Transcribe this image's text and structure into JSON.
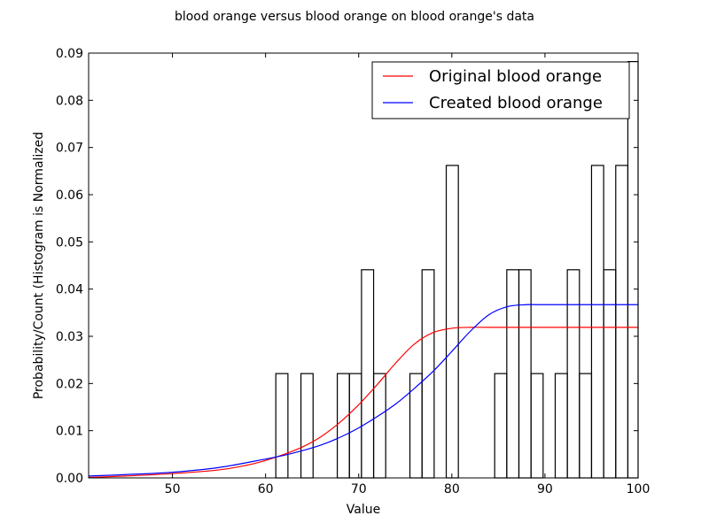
{
  "chart_data": {
    "type": "histogram+line",
    "title": "blood orange versus blood orange on blood orange's data",
    "xlabel": "Value",
    "ylabel": "Probability/Count (Histogram is Normalized",
    "xlim": [
      41,
      100
    ],
    "ylim": [
      0,
      0.09
    ],
    "xticks": [
      50,
      60,
      70,
      80,
      90,
      100
    ],
    "yticks": [
      0.0,
      0.01,
      0.02,
      0.03,
      0.04,
      0.05,
      0.06,
      0.07,
      0.08,
      0.09
    ],
    "ytick_labels": [
      "0.00",
      "0.01",
      "0.02",
      "0.03",
      "0.04",
      "0.05",
      "0.06",
      "0.07",
      "0.08",
      "0.09"
    ],
    "legend_position": "top-right",
    "grid": false,
    "histogram": {
      "edgecolor": "#000000",
      "fill": "none",
      "bins": [
        {
          "x0": 61.1,
          "x1": 62.4,
          "value": 0.0221
        },
        {
          "x0": 63.8,
          "x1": 65.1,
          "value": 0.0221
        },
        {
          "x0": 67.7,
          "x1": 69.0,
          "value": 0.0221
        },
        {
          "x0": 69.0,
          "x1": 70.3,
          "value": 0.0221
        },
        {
          "x0": 70.3,
          "x1": 71.6,
          "value": 0.0441
        },
        {
          "x0": 71.6,
          "x1": 72.9,
          "value": 0.0221
        },
        {
          "x0": 75.5,
          "x1": 76.8,
          "value": 0.0221
        },
        {
          "x0": 76.8,
          "x1": 78.1,
          "value": 0.0441
        },
        {
          "x0": 79.4,
          "x1": 80.7,
          "value": 0.0662
        },
        {
          "x0": 84.6,
          "x1": 85.9,
          "value": 0.0221
        },
        {
          "x0": 85.9,
          "x1": 87.2,
          "value": 0.0441
        },
        {
          "x0": 87.2,
          "x1": 88.5,
          "value": 0.0441
        },
        {
          "x0": 88.5,
          "x1": 89.8,
          "value": 0.0221
        },
        {
          "x0": 91.1,
          "x1": 92.4,
          "value": 0.0221
        },
        {
          "x0": 92.4,
          "x1": 93.7,
          "value": 0.0441
        },
        {
          "x0": 93.7,
          "x1": 95.0,
          "value": 0.0221
        },
        {
          "x0": 95.0,
          "x1": 96.3,
          "value": 0.0662
        },
        {
          "x0": 96.3,
          "x1": 97.6,
          "value": 0.0441
        },
        {
          "x0": 97.6,
          "x1": 98.9,
          "value": 0.0662
        },
        {
          "x0": 98.9,
          "x1": 100.0,
          "value": 0.0882
        }
      ]
    },
    "series": [
      {
        "name": "Original blood orange",
        "color": "#ff0000",
        "x": [
          41,
          45,
          50,
          55,
          58,
          60,
          62,
          64,
          66,
          68,
          70,
          72,
          74,
          76,
          78,
          80,
          82,
          84,
          90,
          100
        ],
        "y": [
          0.0001,
          0.0004,
          0.0009,
          0.0017,
          0.0027,
          0.0037,
          0.005,
          0.0066,
          0.0088,
          0.0118,
          0.0155,
          0.0198,
          0.0244,
          0.0284,
          0.0308,
          0.0317,
          0.0319,
          0.0319,
          0.0319,
          0.0319
        ]
      },
      {
        "name": "Created blood orange",
        "color": "#0000ff",
        "x": [
          41,
          45,
          50,
          55,
          60,
          62,
          64,
          66,
          68,
          70,
          72,
          74,
          76,
          78,
          80,
          82,
          84,
          86,
          88,
          90,
          100
        ],
        "y": [
          0.0004,
          0.0007,
          0.0012,
          0.0022,
          0.004,
          0.0048,
          0.0058,
          0.007,
          0.0086,
          0.0106,
          0.013,
          0.0157,
          0.019,
          0.0226,
          0.0268,
          0.0311,
          0.0346,
          0.0363,
          0.0367,
          0.0367,
          0.0367
        ]
      }
    ]
  }
}
